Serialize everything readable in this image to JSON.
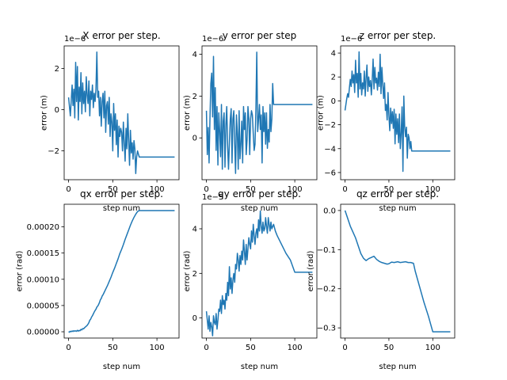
{
  "chart_data": [
    {
      "type": "line",
      "title": "X error per step.",
      "xlabel": "step num",
      "ylabel": "error (m)",
      "offset_text": "1e−6",
      "xlim": [
        -5,
        125
      ],
      "ylim": [
        -3.4,
        3.1
      ],
      "xticks": [
        0,
        50,
        100
      ],
      "xtick_labels": [
        "0",
        "50",
        "100"
      ],
      "yticks": [
        -2,
        0,
        2
      ],
      "ytick_labels": [
        "−2",
        "0",
        "2"
      ],
      "color": "#1f77b4",
      "series": [
        {
          "x": [
            0,
            2,
            4,
            5,
            6,
            7,
            8,
            9,
            10,
            11,
            12,
            13,
            14,
            15,
            16,
            17,
            18,
            19,
            20,
            21,
            22,
            23,
            24,
            25,
            26,
            27,
            28,
            29,
            30,
            31,
            32,
            33,
            34,
            35,
            36,
            37,
            38,
            39,
            40,
            41,
            42,
            43,
            44,
            45,
            46,
            47,
            48,
            49,
            50,
            51,
            52,
            53,
            54,
            55,
            56,
            57,
            58,
            59,
            60,
            61,
            62,
            63,
            64,
            65,
            66,
            67,
            68,
            69,
            70,
            71,
            72,
            73,
            74,
            75,
            76,
            77,
            78,
            80,
            90,
            100,
            110,
            120
          ],
          "y": [
            0.6,
            -0.3,
            1.2,
            0.2,
            1.0,
            -0.4,
            2.3,
            0.4,
            2.1,
            -0.5,
            1.1,
            0.4,
            1.8,
            -0.2,
            1.3,
            0.3,
            0.9,
            -0.1,
            1.6,
            0.7,
            0.3,
            1.4,
            -0.3,
            0.9,
            0.5,
            1.2,
            0.1,
            0.8,
            0.4,
            1.0,
            2.8,
            0.6,
            0.9,
            -0.3,
            0.6,
            -0.8,
            0.4,
            0.8,
            -0.4,
            0.9,
            -1.1,
            0.2,
            0.4,
            -0.7,
            0.6,
            -1.3,
            -0.2,
            -0.6,
            -2.0,
            0.3,
            -1.0,
            -0.2,
            -1.7,
            -0.5,
            -2.3,
            -0.8,
            -1.3,
            -0.9,
            -1.1,
            -2.0,
            -0.6,
            -1.6,
            -2.5,
            -0.9,
            -1.9,
            -0.2,
            -1.5,
            -2.7,
            -1.0,
            -2.1,
            -1.6,
            -2.4,
            -1.5,
            -1.9,
            -3.1,
            -2.3,
            -2.0,
            -2.3,
            -2.3,
            -2.3,
            -2.3,
            -2.3
          ]
        }
      ]
    },
    {
      "type": "line",
      "title": "y error per step",
      "xlabel": "step num",
      "ylabel": "error (m)",
      "offset_text": "1e−6",
      "xlim": [
        -5,
        125
      ],
      "ylim": [
        -2.0,
        4.4
      ],
      "xticks": [
        0,
        50,
        100
      ],
      "xtick_labels": [
        "0",
        "50",
        "100"
      ],
      "yticks": [
        0,
        2,
        4
      ],
      "ytick_labels": [
        "0",
        "2",
        "4"
      ],
      "color": "#1f77b4",
      "series": [
        {
          "x": [
            0,
            1,
            2,
            3,
            4,
            5,
            6,
            7,
            8,
            9,
            10,
            11,
            12,
            13,
            14,
            15,
            16,
            17,
            18,
            19,
            20,
            21,
            22,
            23,
            24,
            25,
            26,
            27,
            28,
            29,
            30,
            31,
            32,
            33,
            34,
            35,
            36,
            37,
            38,
            39,
            40,
            41,
            42,
            43,
            44,
            45,
            46,
            47,
            48,
            49,
            50,
            51,
            52,
            53,
            54,
            55,
            56,
            57,
            58,
            59,
            60,
            61,
            62,
            63,
            64,
            65,
            66,
            67,
            68,
            69,
            70,
            71,
            72,
            73,
            74,
            75,
            76,
            78,
            80,
            90,
            100,
            110,
            120
          ],
          "y": [
            1.3,
            -0.8,
            0.5,
            -1.2,
            0.9,
            2.6,
            3.1,
            1.0,
            3.9,
            0.4,
            2.4,
            -0.6,
            1.5,
            -1.3,
            1.2,
            0.3,
            -0.9,
            1.6,
            -1.5,
            0.8,
            1.2,
            -1.4,
            0.6,
            1.5,
            -0.4,
            -1.5,
            -0.2,
            0.9,
            1.4,
            -1.2,
            0.9,
            1.3,
            -0.3,
            -1.7,
            1.1,
            0.2,
            -1.5,
            1.3,
            -1.0,
            -0.3,
            0.8,
            -1.2,
            1.5,
            0.4,
            1.2,
            -0.8,
            -0.1,
            1.5,
            0.9,
            -0.8,
            0.9,
            1.3,
            1.1,
            0.2,
            -0.6,
            -0.3,
            1.4,
            4.1,
            0.3,
            0.9,
            1.6,
            0.4,
            1.1,
            -1.2,
            1.5,
            0.3,
            1.2,
            -0.3,
            1.2,
            -0.5,
            0.4,
            -0.2,
            1.6,
            0.3,
            0.9,
            2.6,
            1.6,
            1.6,
            1.6,
            1.6,
            1.6,
            1.6,
            1.6
          ]
        }
      ]
    },
    {
      "type": "line",
      "title": "z error per step.",
      "xlabel": "step num",
      "ylabel": "error (m)",
      "offset_text": "1e−6",
      "xlim": [
        -5,
        125
      ],
      "ylim": [
        -6.6,
        4.6
      ],
      "xticks": [
        0,
        50,
        100
      ],
      "xtick_labels": [
        "0",
        "50",
        "100"
      ],
      "yticks": [
        -6,
        -4,
        -2,
        0,
        2,
        4
      ],
      "ytick_labels": [
        "−6",
        "−4",
        "−2",
        "0",
        "2",
        "4"
      ],
      "color": "#1f77b4",
      "series": [
        {
          "x": [
            0,
            2,
            3,
            4,
            5,
            6,
            7,
            8,
            9,
            10,
            11,
            12,
            13,
            14,
            15,
            16,
            17,
            18,
            19,
            20,
            21,
            22,
            23,
            24,
            25,
            26,
            27,
            28,
            29,
            30,
            31,
            32,
            33,
            34,
            35,
            36,
            37,
            38,
            39,
            40,
            41,
            42,
            43,
            44,
            45,
            46,
            47,
            48,
            49,
            50,
            51,
            52,
            53,
            54,
            55,
            56,
            57,
            58,
            59,
            60,
            61,
            62,
            63,
            64,
            65,
            66,
            67,
            68,
            69,
            70,
            71,
            72,
            73,
            74,
            75,
            76,
            77,
            80,
            90,
            100,
            110,
            120
          ],
          "y": [
            -0.8,
            0.2,
            0.6,
            0.3,
            1.1,
            1.8,
            1.2,
            2.5,
            1.5,
            2.2,
            0.7,
            3.4,
            1.5,
            2.3,
            0.3,
            4.1,
            1.0,
            2.3,
            0.5,
            1.5,
            1.0,
            2.5,
            0.4,
            1.9,
            3.0,
            0.8,
            2.0,
            1.2,
            1.7,
            0.5,
            1.8,
            3.5,
            1.0,
            2.8,
            1.5,
            1.9,
            0.9,
            2.4,
            1.2,
            3.9,
            0.6,
            2.8,
            1.4,
            0.2,
            1.5,
            -0.8,
            -0.3,
            -1.6,
            0.7,
            -1.2,
            -2.5,
            -0.6,
            -1.9,
            -0.9,
            -2.3,
            -0.7,
            -3.6,
            -1.1,
            -2.8,
            -1.5,
            -3.5,
            -1.1,
            -4.0,
            -2.7,
            -0.5,
            -5.9,
            0.4,
            -2.2,
            -3.0,
            -2.2,
            -4.8,
            -2.8,
            -3.1,
            -4.0,
            -3.4,
            -4.2,
            -4.2,
            -4.2,
            -4.2,
            -4.2,
            -4.2,
            -4.2
          ]
        }
      ]
    },
    {
      "type": "line",
      "title": "qx error per step.",
      "xlabel": "step num",
      "ylabel": "error (rad)",
      "offset_text": "",
      "xlim": [
        -5,
        125
      ],
      "ylim": [
        -1.2e-05,
        0.000243
      ],
      "xticks": [
        0,
        50,
        100
      ],
      "xtick_labels": [
        "0",
        "50",
        "100"
      ],
      "yticks": [
        0,
        5e-05,
        0.0001,
        0.00015,
        0.0002
      ],
      "ytick_labels": [
        "0.00000",
        "0.00005",
        "0.00010",
        "0.00015",
        "0.00020"
      ],
      "color": "#1f77b4",
      "series": [
        {
          "x": [
            0,
            1,
            2,
            3,
            4,
            5,
            6,
            7,
            8,
            9,
            10,
            11,
            12,
            13,
            14,
            15,
            16,
            17,
            18,
            19,
            20,
            21,
            22,
            23,
            24,
            25,
            26,
            27,
            28,
            29,
            30,
            31,
            32,
            33,
            34,
            35,
            36,
            37,
            38,
            39,
            40,
            42,
            44,
            46,
            48,
            50,
            52,
            54,
            56,
            58,
            60,
            62,
            64,
            66,
            68,
            70,
            72,
            74,
            76,
            78,
            80,
            85,
            90,
            100,
            110,
            120
          ],
          "y": [
            3e-07,
            -8e-07,
            1e-06,
            1e-07,
            1.5e-06,
            5e-07,
            2e-06,
            1e-06,
            1.8e-06,
            8e-07,
            2.8e-06,
            1.2e-06,
            2.5e-06,
            2e-06,
            4.5e-06,
            3.5e-06,
            6e-06,
            5.5e-06,
            7.5e-06,
            9e-06,
            1.05e-05,
            1.2e-05,
            1.45e-05,
            1.75e-05,
            2.2e-05,
            2.4e-05,
            2.8e-05,
            3.05e-05,
            3.4e-05,
            3.75e-05,
            4.05e-05,
            4.3e-05,
            4.7e-05,
            4.9e-05,
            5.2e-05,
            5.6e-05,
            6.1e-05,
            6.35e-05,
            6.8e-05,
            7.05e-05,
            7.4e-05,
            8.1e-05,
            8.8e-05,
            9.6e-05,
            0.000104,
            0.000113,
            0.000121,
            0.00013,
            0.000139,
            0.000149,
            0.000157,
            0.000166,
            0.000176,
            0.000185,
            0.000194,
            0.000203,
            0.000211,
            0.000218,
            0.000224,
            0.000229,
            0.000231,
            0.000231,
            0.000231,
            0.000231,
            0.000231,
            0.000231
          ]
        }
      ]
    },
    {
      "type": "line",
      "title": "qy error per step.",
      "xlabel": "step num",
      "ylabel": "error (rad)",
      "offset_text": "1e−5",
      "xlim": [
        -5,
        125
      ],
      "ylim": [
        -0.9,
        5.1
      ],
      "xticks": [
        0,
        50,
        100
      ],
      "xtick_labels": [
        "0",
        "50",
        "100"
      ],
      "yticks": [
        0,
        2,
        4
      ],
      "ytick_labels": [
        "0",
        "2",
        "4"
      ],
      "color": "#1f77b4",
      "series": [
        {
          "x": [
            0,
            1,
            2,
            3,
            4,
            5,
            6,
            7,
            8,
            9,
            10,
            11,
            12,
            13,
            14,
            15,
            16,
            17,
            18,
            19,
            20,
            21,
            22,
            23,
            24,
            25,
            26,
            27,
            28,
            29,
            30,
            31,
            32,
            33,
            34,
            35,
            36,
            37,
            38,
            39,
            40,
            41,
            42,
            43,
            44,
            45,
            46,
            47,
            48,
            49,
            50,
            51,
            52,
            53,
            54,
            55,
            56,
            57,
            58,
            59,
            60,
            61,
            62,
            63,
            64,
            65,
            66,
            67,
            68,
            69,
            70,
            71,
            72,
            73,
            74,
            75,
            76,
            78,
            80,
            85,
            90,
            95,
            100,
            105,
            110,
            120
          ],
          "y": [
            0.3,
            -0.1,
            -0.5,
            0.1,
            -0.6,
            -0.2,
            -0.4,
            -0.8,
            0.1,
            -0.2,
            -0.3,
            0.2,
            -0.5,
            -0.1,
            0.4,
            0.3,
            0.8,
            0.2,
            1.0,
            0.6,
            0.8,
            0.4,
            1.1,
            0.8,
            1.6,
            1.0,
            2.3,
            1.3,
            1.8,
            1.1,
            1.7,
            2.0,
            1.6,
            2.4,
            2.2,
            2.9,
            2.6,
            2.1,
            2.8,
            2.4,
            3.0,
            2.6,
            3.5,
            3.0,
            2.4,
            3.3,
            2.6,
            3.1,
            3.6,
            3.3,
            3.1,
            3.9,
            3.4,
            4.2,
            3.7,
            3.3,
            3.8,
            4.0,
            3.6,
            4.4,
            3.9,
            4.8,
            4.1,
            3.8,
            4.3,
            3.9,
            4.0,
            4.5,
            4.1,
            3.8,
            4.5,
            4.2,
            3.9,
            4.3,
            4.0,
            4.1,
            4.2,
            3.9,
            3.7,
            3.3,
            2.9,
            2.6,
            2.05,
            2.05,
            2.05,
            2.05
          ]
        }
      ]
    },
    {
      "type": "line",
      "title": "qz error per step.",
      "xlabel": "step num",
      "ylabel": "error (rad)",
      "offset_text": "",
      "xlim": [
        -5,
        125
      ],
      "ylim": [
        -0.326,
        0.016
      ],
      "xticks": [
        0,
        50,
        100
      ],
      "xtick_labels": [
        "0",
        "50",
        "100"
      ],
      "yticks": [
        -0.3,
        -0.2,
        -0.1,
        0.0
      ],
      "ytick_labels": [
        "−0.3",
        "−0.2",
        "−0.1",
        "0.0"
      ],
      "color": "#1f77b4",
      "series": [
        {
          "x": [
            0,
            3,
            6,
            9,
            12,
            15,
            18,
            21,
            24,
            27,
            30,
            33,
            36,
            39,
            42,
            45,
            48,
            50,
            53,
            56,
            60,
            63,
            66,
            69,
            72,
            75,
            78,
            80,
            85,
            90,
            95,
            100,
            105,
            110,
            120
          ],
          "y": [
            0.0,
            -0.02,
            -0.04,
            -0.055,
            -0.07,
            -0.09,
            -0.11,
            -0.122,
            -0.128,
            -0.123,
            -0.12,
            -0.117,
            -0.125,
            -0.13,
            -0.133,
            -0.135,
            -0.137,
            -0.136,
            -0.132,
            -0.133,
            -0.131,
            -0.133,
            -0.132,
            -0.131,
            -0.133,
            -0.133,
            -0.135,
            -0.155,
            -0.195,
            -0.235,
            -0.27,
            -0.31,
            -0.31,
            -0.31,
            -0.31
          ]
        }
      ]
    }
  ]
}
